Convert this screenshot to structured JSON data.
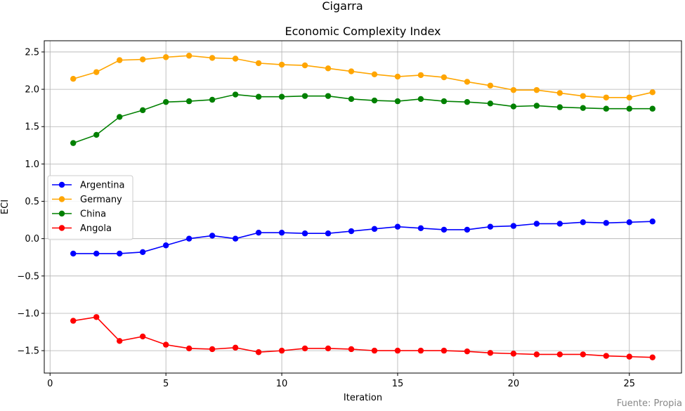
{
  "suptitle": "Cigarra",
  "footer": "Fuente: Propia",
  "chart_data": {
    "type": "line",
    "title": "Economic Complexity Index",
    "xlabel": "Iteration",
    "ylabel": "ECI",
    "xlim": [
      -0.25,
      27.25
    ],
    "ylim": [
      -1.8,
      2.65
    ],
    "xticks": [
      0,
      5,
      10,
      15,
      20,
      25
    ],
    "yticks": [
      -1.5,
      -1.0,
      -0.5,
      0.0,
      0.5,
      1.0,
      1.5,
      2.0,
      2.5
    ],
    "grid": true,
    "legend": "center-left",
    "x": [
      1,
      2,
      3,
      4,
      5,
      6,
      7,
      8,
      9,
      10,
      11,
      12,
      13,
      14,
      15,
      16,
      17,
      18,
      19,
      20,
      21,
      22,
      23,
      24,
      25,
      26
    ],
    "series": [
      {
        "name": "Argentina",
        "color": "#0000ff",
        "values": [
          -0.2,
          -0.2,
          -0.2,
          -0.18,
          -0.09,
          0.0,
          0.04,
          0.0,
          0.08,
          0.08,
          0.07,
          0.07,
          0.1,
          0.13,
          0.16,
          0.14,
          0.12,
          0.12,
          0.16,
          0.17,
          0.2,
          0.2,
          0.22,
          0.21,
          0.22,
          0.23
        ]
      },
      {
        "name": "Germany",
        "color": "#ffa500",
        "values": [
          2.14,
          2.23,
          2.39,
          2.4,
          2.43,
          2.45,
          2.42,
          2.41,
          2.35,
          2.33,
          2.32,
          2.28,
          2.24,
          2.2,
          2.17,
          2.19,
          2.16,
          2.1,
          2.05,
          1.99,
          1.99,
          1.95,
          1.91,
          1.89,
          1.89,
          1.96
        ]
      },
      {
        "name": "China",
        "color": "#008000",
        "values": [
          1.28,
          1.39,
          1.63,
          1.72,
          1.83,
          1.84,
          1.86,
          1.93,
          1.9,
          1.9,
          1.91,
          1.91,
          1.87,
          1.85,
          1.84,
          1.87,
          1.84,
          1.83,
          1.81,
          1.77,
          1.78,
          1.76,
          1.75,
          1.74,
          1.74,
          1.74
        ]
      },
      {
        "name": "Angola",
        "color": "#ff0000",
        "values": [
          -1.1,
          -1.05,
          -1.37,
          -1.31,
          -1.42,
          -1.47,
          -1.48,
          -1.46,
          -1.52,
          -1.5,
          -1.47,
          -1.47,
          -1.48,
          -1.5,
          -1.5,
          -1.5,
          -1.5,
          -1.51,
          -1.53,
          -1.54,
          -1.55,
          -1.55,
          -1.55,
          -1.57,
          -1.58,
          -1.59
        ]
      }
    ]
  }
}
